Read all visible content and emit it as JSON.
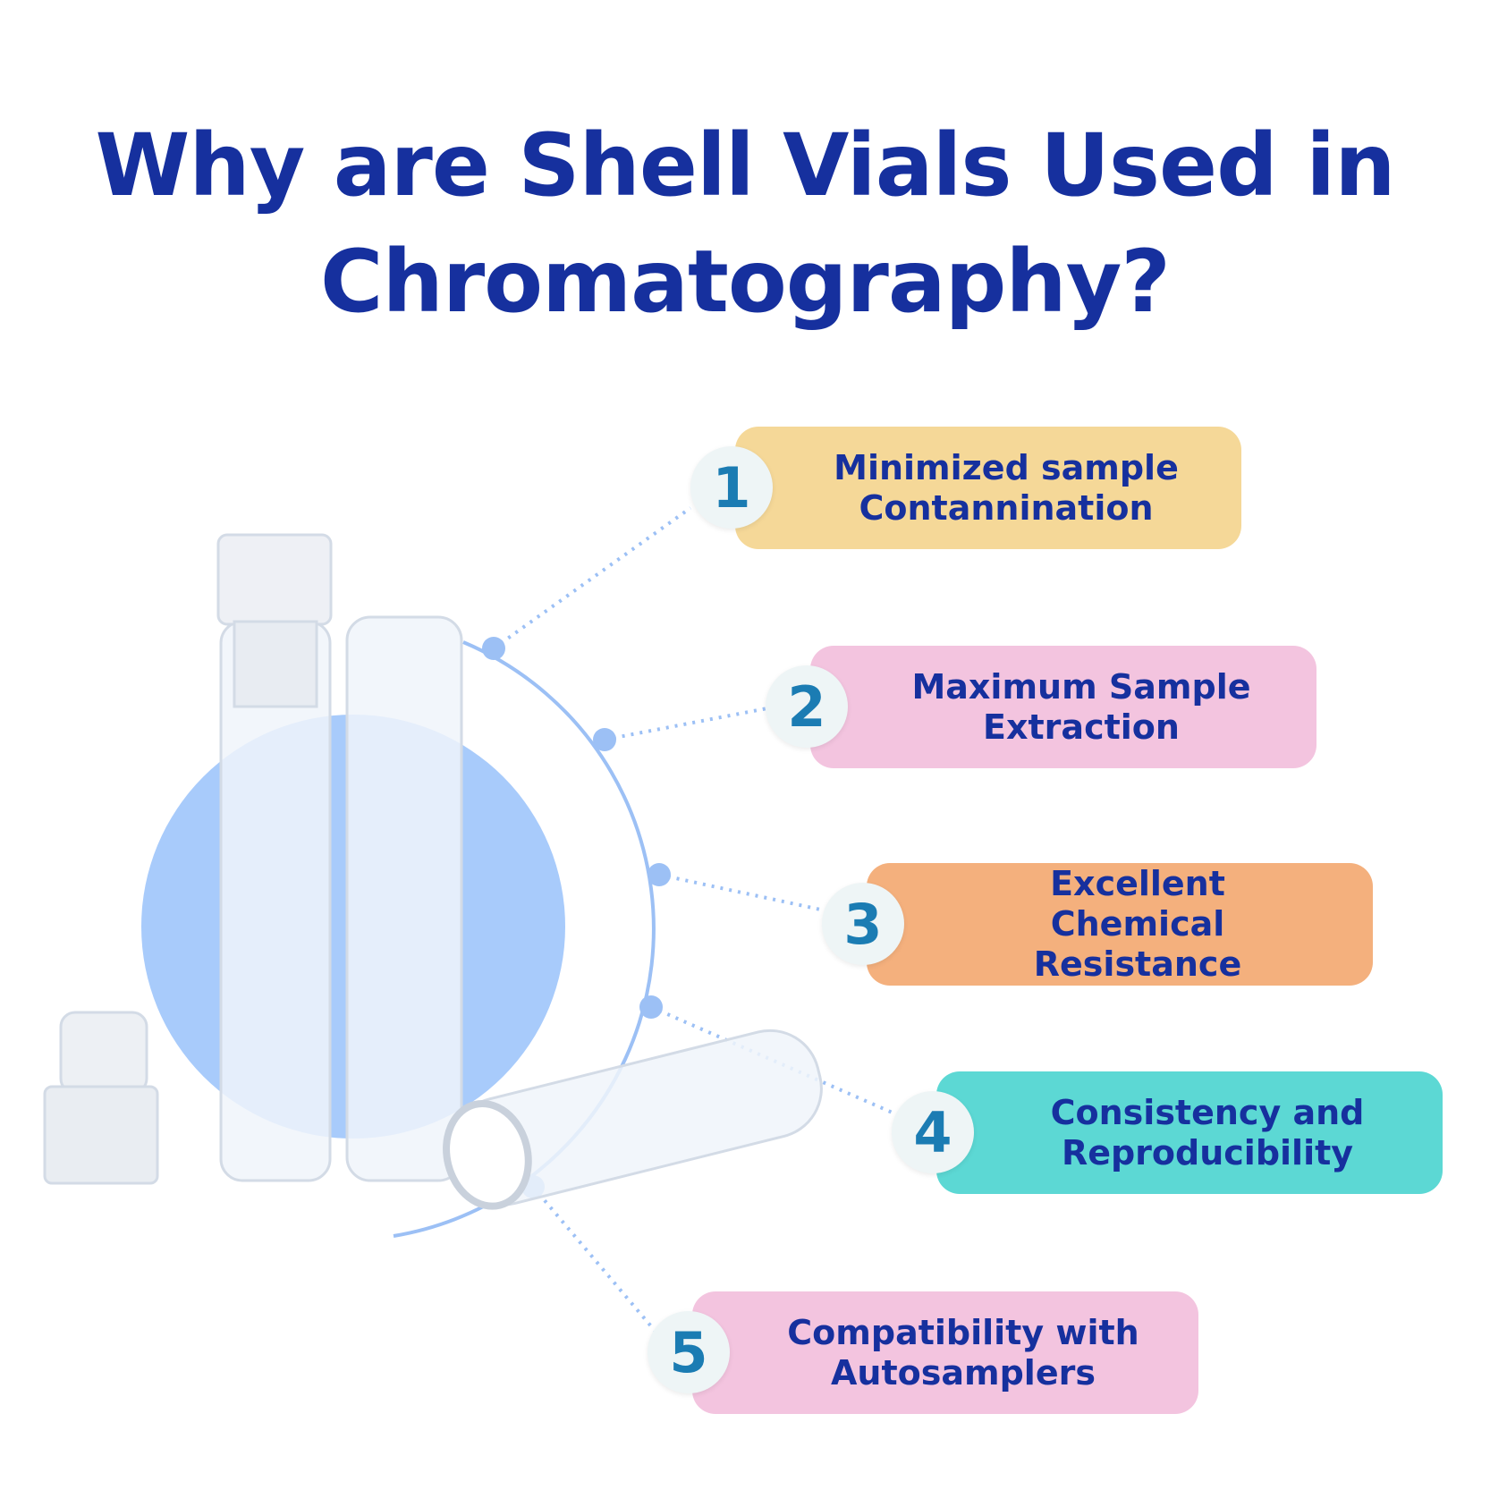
{
  "title": "Why are Shell Vials Used in Chromatography?",
  "items": [
    {
      "number": "1",
      "text": "Minimized sample Contannination"
    },
    {
      "number": "2",
      "text": "Maximum Sample Extraction"
    },
    {
      "number": "3",
      "text": "Excellent Chemical Resistance"
    },
    {
      "number": "4",
      "text": "Consistency and Reproducibility"
    },
    {
      "number": "5",
      "text": "Compatibility with Autosamplers"
    }
  ]
}
